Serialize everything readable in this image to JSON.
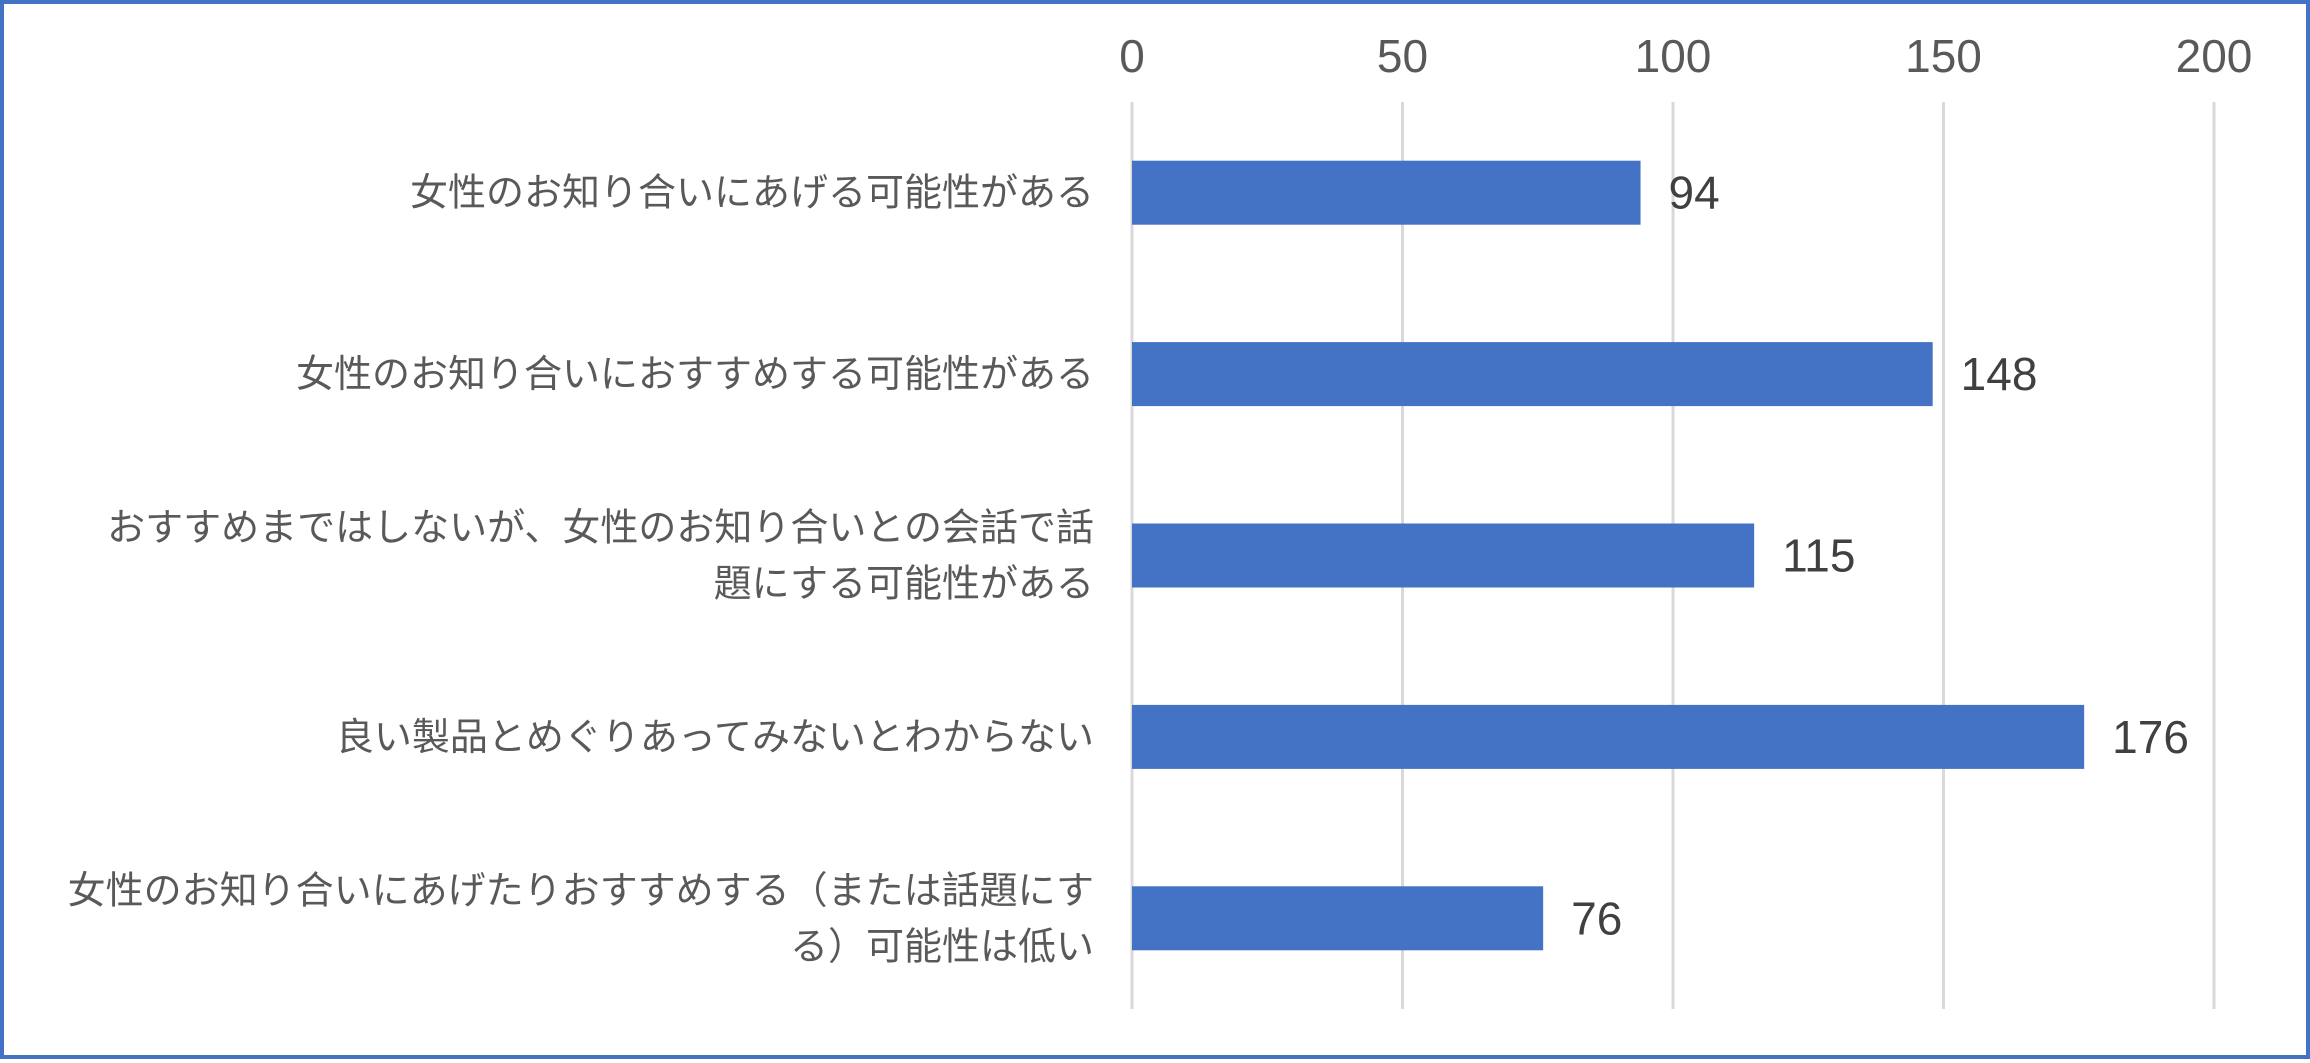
{
  "chart_data": {
    "type": "bar",
    "orientation": "horizontal",
    "categories": [
      "女性のお知り合いにあげる可能性がある",
      "女性のお知り合いにおすすめする可能性がある",
      "おすすめまではしないが、女性のお知り合いとの会話で話題にする可能性がある",
      "良い製品とめぐりあってみないとわからない",
      "女性のお知り合いにあげたりおすすめする（または話題にする）可能性は低い"
    ],
    "category_lines": [
      [
        "女性のお知り合いにあげる可能性がある"
      ],
      [
        "女性のお知り合いにおすすめする可能性がある"
      ],
      [
        "おすすめまではしないが、女性のお知り合いとの会話で話",
        "題にする可能性がある"
      ],
      [
        "良い製品とめぐりあってみないとわからない"
      ],
      [
        "女性のお知り合いにあげたりおすすめする（または話題にす",
        "る）可能性は低い"
      ]
    ],
    "values": [
      94,
      148,
      115,
      176,
      76
    ],
    "xlim": [
      0,
      200
    ],
    "xticks": [
      "0",
      "50",
      "100",
      "150",
      "200"
    ],
    "xtick_values": [
      0,
      50,
      100,
      150,
      200
    ],
    "x_axis_position": "top",
    "grid": true,
    "legend": "none",
    "data_labels": true,
    "colors": {
      "bar": "#4472c4",
      "border": "#4472c4",
      "grid": "#d9d9d9",
      "text": "#595959"
    }
  }
}
